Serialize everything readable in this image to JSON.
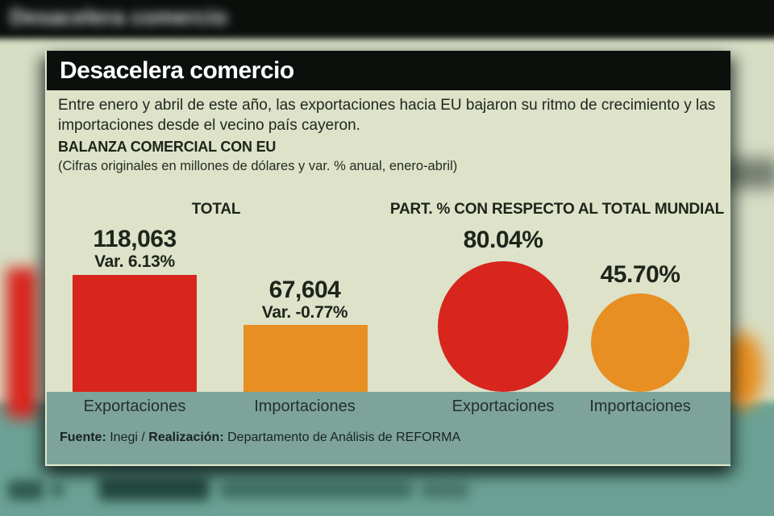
{
  "background": {
    "blur_title": "Desacelera comercio"
  },
  "card": {
    "title": "Desacelera comercio",
    "intro": "Entre enero y abril de este año, las exportaciones hacia EU bajaron su ritmo de crecimiento y las importaciones desde el vecino país cayeron.",
    "subtitle": "BALANZA COMERCIAL CON EU",
    "note": "(Cifras originales en millones de dólares y var. % anual, enero-abril)",
    "footer": {
      "source_label": "Fuente:",
      "source": "Inegi",
      "separator": "/",
      "realization_label": "Realización:",
      "realization": "Departamento de Análisis de REFORMA"
    }
  },
  "colors": {
    "red": "#d8251e",
    "orange": "#e78f22",
    "card_bg": "#dde2c9",
    "band_bg": "#7ea39b",
    "header_bg": "#0b100d"
  },
  "chart_data": [
    {
      "type": "bar",
      "title": "TOTAL",
      "categories": [
        "Exportaciones",
        "Importaciones"
      ],
      "values": [
        118063,
        67604
      ],
      "value_labels": [
        "118,063",
        "67,604"
      ],
      "variation_labels": [
        "Var. 6.13%",
        "Var. -0.77%"
      ],
      "colors": [
        "#d8251e",
        "#e78f22"
      ],
      "units": "millones de dólares, enero-abril"
    },
    {
      "type": "proportional-circles",
      "title": "PART. % CON RESPECTO AL TOTAL MUNDIAL",
      "categories": [
        "Exportaciones",
        "Importaciones"
      ],
      "values": [
        80.04,
        45.7
      ],
      "value_labels": [
        "80.04%",
        "45.70%"
      ],
      "colors": [
        "#d8251e",
        "#e78f22"
      ],
      "units": "% del total mundial"
    }
  ]
}
